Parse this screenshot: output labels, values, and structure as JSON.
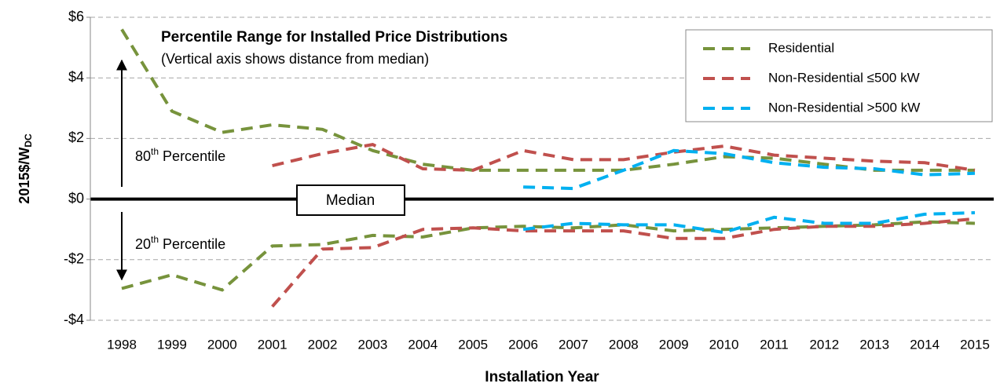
{
  "chart_data": {
    "type": "line",
    "title": "Percentile Range for Installed Price Distributions",
    "subtitle": "(Vertical axis shows distance from median)",
    "y_label": [
      "2015$/W",
      "DC"
    ],
    "x_label": "Installation Year",
    "median_label": "Median",
    "upper_label": [
      "80",
      "th",
      " Percentile"
    ],
    "lower_label": [
      "20",
      "th",
      " Percentile"
    ],
    "categories": [
      "1998",
      "1999",
      "2000",
      "2001",
      "2002",
      "2003",
      "2004",
      "2005",
      "2006",
      "2007",
      "2008",
      "2009",
      "2010",
      "2011",
      "2012",
      "2013",
      "2014",
      "2015"
    ],
    "ylim": [
      -4,
      6
    ],
    "yticks": [
      {
        "value": -4,
        "label": "-$4"
      },
      {
        "value": -2,
        "label": "-$2"
      },
      {
        "value": 0,
        "label": "$0"
      },
      {
        "value": 2,
        "label": "$2"
      },
      {
        "value": 4,
        "label": "$4"
      },
      {
        "value": 6,
        "label": "$6"
      }
    ],
    "grid": true,
    "legend": "top-right",
    "series": [
      {
        "name": "Residential",
        "color": "#77933c",
        "p80": [
          5.6,
          2.9,
          2.2,
          2.45,
          2.3,
          1.6,
          1.15,
          0.95,
          0.95,
          0.95,
          0.95,
          1.15,
          1.4,
          1.35,
          1.15,
          0.95,
          0.95,
          0.95
        ],
        "p20": [
          -2.95,
          -2.5,
          -3.0,
          -1.55,
          -1.5,
          -1.2,
          -1.25,
          -0.95,
          -0.9,
          -0.95,
          -0.85,
          -1.05,
          -1.0,
          -0.95,
          -0.9,
          -0.85,
          -0.75,
          -0.8
        ]
      },
      {
        "name": "Non-Residential ≤500 kW",
        "color": "#c0504d",
        "p80": [
          null,
          null,
          null,
          1.1,
          1.5,
          1.8,
          1.0,
          0.95,
          1.6,
          1.3,
          1.3,
          1.55,
          1.75,
          1.45,
          1.35,
          1.25,
          1.2,
          0.95
        ],
        "p20": [
          null,
          null,
          null,
          -3.55,
          -1.65,
          -1.6,
          -1.0,
          -0.95,
          -1.05,
          -1.05,
          -1.05,
          -1.3,
          -1.3,
          -1.0,
          -0.9,
          -0.9,
          -0.8,
          -0.65
        ]
      },
      {
        "name": "Non-Residential >500 kW",
        "color": "#00b0f0",
        "p80": [
          null,
          null,
          null,
          null,
          null,
          null,
          null,
          null,
          0.4,
          0.35,
          0.95,
          1.6,
          1.5,
          1.2,
          1.05,
          1.0,
          0.8,
          0.85
        ],
        "p20": [
          null,
          null,
          null,
          null,
          null,
          null,
          null,
          null,
          -1.0,
          -0.8,
          -0.85,
          -0.85,
          -1.1,
          -0.6,
          -0.8,
          -0.8,
          -0.5,
          -0.45
        ]
      }
    ]
  }
}
